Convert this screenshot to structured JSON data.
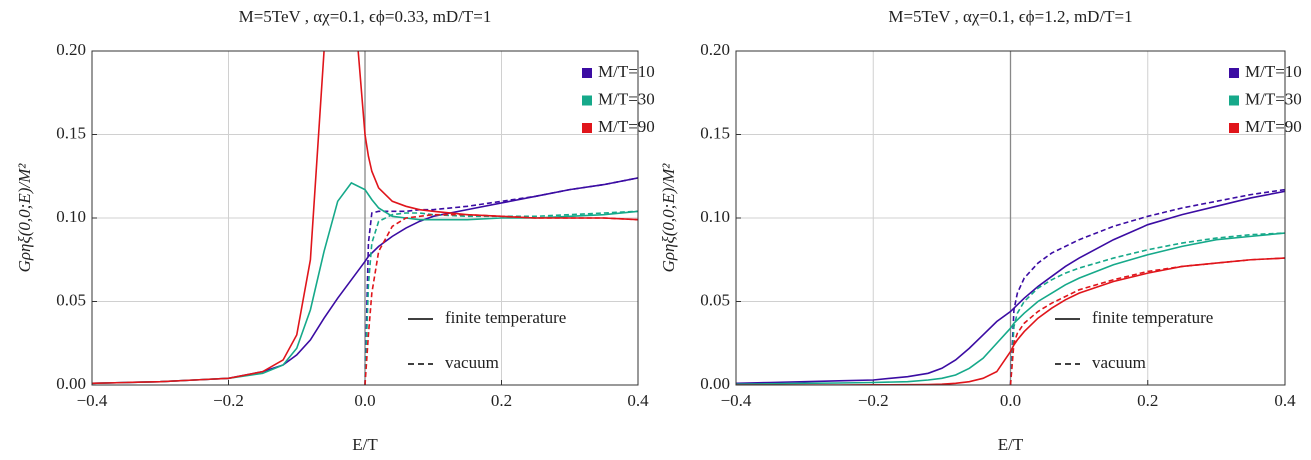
{
  "chart_data": [
    {
      "type": "line",
      "title": "M=5TeV , αχ=0.1, ϵϕ=0.33, mD/T=1",
      "xlabel": "E/T",
      "ylabel": "Gρηξ(0,0;E)/M²",
      "x": [
        -0.4,
        -0.35,
        -0.3,
        -0.25,
        -0.2,
        -0.15,
        -0.12,
        -0.1,
        -0.08,
        -0.06,
        -0.04,
        -0.02,
        0,
        0.005,
        0.01,
        0.02,
        0.04,
        0.06,
        0.08,
        0.1,
        0.15,
        0.2,
        0.25,
        0.3,
        0.35,
        0.4
      ],
      "series": [
        {
          "name": "M/T=10",
          "color": "#3b0ca3",
          "values": [
            0.001,
            0.0015,
            0.002,
            0.003,
            0.004,
            0.008,
            0.012,
            0.018,
            0.027,
            0.04,
            0.052,
            0.063,
            0.074,
            0.077,
            0.079,
            0.083,
            0.089,
            0.094,
            0.098,
            0.101,
            0.105,
            0.109,
            0.113,
            0.117,
            0.12,
            0.124
          ],
          "vacuum_values": [
            null,
            null,
            null,
            null,
            null,
            null,
            null,
            null,
            null,
            null,
            null,
            null,
            0,
            0.085,
            0.103,
            0.104,
            0.104,
            0.104,
            0.105,
            0.105,
            0.107,
            0.11,
            0.113,
            0.117,
            0.12,
            0.124
          ]
        },
        {
          "name": "M/T=30",
          "color": "#16a98a",
          "values": [
            0.001,
            0.0015,
            0.002,
            0.003,
            0.004,
            0.007,
            0.012,
            0.022,
            0.045,
            0.08,
            0.11,
            0.121,
            0.117,
            0.114,
            0.111,
            0.106,
            0.101,
            0.1,
            0.099,
            0.099,
            0.099,
            0.1,
            0.1,
            0.101,
            0.102,
            0.104
          ],
          "vacuum_values": [
            null,
            null,
            null,
            null,
            null,
            null,
            null,
            null,
            null,
            null,
            null,
            null,
            0,
            0.06,
            0.085,
            0.098,
            0.102,
            0.103,
            0.103,
            0.102,
            0.101,
            0.101,
            0.101,
            0.102,
            0.103,
            0.104
          ]
        },
        {
          "name": "M/T=90",
          "color": "#e0151b",
          "values": [
            0.001,
            0.0015,
            0.002,
            0.003,
            0.004,
            0.008,
            0.015,
            0.03,
            0.075,
            0.2,
            0.3,
            0.25,
            0.15,
            0.137,
            0.128,
            0.118,
            0.11,
            0.107,
            0.105,
            0.104,
            0.102,
            0.101,
            0.1,
            0.1,
            0.1,
            0.099
          ],
          "vacuum_values": [
            null,
            null,
            null,
            null,
            null,
            null,
            null,
            null,
            null,
            null,
            null,
            null,
            0,
            0.03,
            0.055,
            0.08,
            0.095,
            0.1,
            0.101,
            0.102,
            0.102,
            0.101,
            0.1,
            0.1,
            0.1,
            0.099
          ]
        }
      ],
      "style_legend": [
        "finite temperature",
        "vacuum"
      ],
      "xlim": [
        -0.4,
        0.4
      ],
      "ylim": [
        0,
        0.2
      ],
      "xticks": [
        {
          "value": -0.4,
          "label": "−0.4"
        },
        {
          "value": -0.2,
          "label": "−0.2"
        },
        {
          "value": 0,
          "label": "0.0"
        },
        0.2,
        0.4
      ],
      "yticks": [
        {
          "value": 0,
          "label": "0.00"
        },
        0.05,
        {
          "value": 0.1,
          "label": "0.10"
        },
        0.15,
        {
          "value": 0.2,
          "label": "0.20"
        }
      ],
      "grid": true
    },
    {
      "type": "line",
      "title": "M=5TeV , αχ=0.1, ϵϕ=1.2, mD/T=1",
      "xlabel": "E/T",
      "ylabel": "Gρηξ(0,0;E)/M²",
      "x": [
        -0.4,
        -0.35,
        -0.3,
        -0.25,
        -0.2,
        -0.15,
        -0.12,
        -0.1,
        -0.08,
        -0.06,
        -0.04,
        -0.02,
        0,
        0.005,
        0.01,
        0.02,
        0.04,
        0.06,
        0.08,
        0.1,
        0.15,
        0.2,
        0.25,
        0.3,
        0.35,
        0.4
      ],
      "series": [
        {
          "name": "M/T=10",
          "color": "#3b0ca3",
          "values": [
            0.001,
            0.0015,
            0.002,
            0.0025,
            0.003,
            0.005,
            0.007,
            0.01,
            0.015,
            0.022,
            0.03,
            0.038,
            0.044,
            0.046,
            0.048,
            0.052,
            0.059,
            0.065,
            0.071,
            0.076,
            0.087,
            0.096,
            0.102,
            0.107,
            0.112,
            0.116
          ],
          "vacuum_values": [
            null,
            null,
            null,
            null,
            null,
            null,
            null,
            null,
            null,
            null,
            null,
            null,
            0,
            0.045,
            0.055,
            0.064,
            0.073,
            0.079,
            0.083,
            0.087,
            0.095,
            0.101,
            0.106,
            0.11,
            0.114,
            0.117
          ]
        },
        {
          "name": "M/T=30",
          "color": "#16a98a",
          "values": [
            0.0005,
            0.0007,
            0.001,
            0.0012,
            0.0015,
            0.002,
            0.003,
            0.004,
            0.006,
            0.01,
            0.016,
            0.025,
            0.034,
            0.037,
            0.039,
            0.043,
            0.05,
            0.055,
            0.06,
            0.064,
            0.072,
            0.078,
            0.083,
            0.087,
            0.089,
            0.091
          ],
          "vacuum_values": [
            null,
            null,
            null,
            null,
            null,
            null,
            null,
            null,
            null,
            null,
            null,
            null,
            0,
            0.035,
            0.043,
            0.05,
            0.058,
            0.063,
            0.067,
            0.07,
            0.076,
            0.081,
            0.085,
            0.088,
            0.09,
            0.091
          ]
        },
        {
          "name": "M/T=90",
          "color": "#e0151b",
          "values": [
            0,
            0,
            0,
            0,
            0.0001,
            0.0002,
            0.0003,
            0.0005,
            0.001,
            0.002,
            0.004,
            0.008,
            0.02,
            0.024,
            0.027,
            0.032,
            0.04,
            0.046,
            0.051,
            0.055,
            0.062,
            0.067,
            0.071,
            0.073,
            0.075,
            0.076
          ],
          "vacuum_values": [
            null,
            null,
            null,
            null,
            null,
            null,
            null,
            null,
            null,
            null,
            null,
            null,
            0,
            0.025,
            0.031,
            0.037,
            0.044,
            0.049,
            0.053,
            0.057,
            0.063,
            0.068,
            0.071,
            0.073,
            0.075,
            0.076
          ]
        }
      ],
      "style_legend": [
        "finite temperature",
        "vacuum"
      ],
      "xlim": [
        -0.4,
        0.4
      ],
      "ylim": [
        0,
        0.2
      ],
      "xticks": [
        {
          "value": -0.4,
          "label": "−0.4"
        },
        {
          "value": -0.2,
          "label": "−0.2"
        },
        {
          "value": 0,
          "label": "0.0"
        },
        0.2,
        0.4
      ],
      "yticks": [
        {
          "value": 0,
          "label": "0.00"
        },
        0.05,
        {
          "value": 0.1,
          "label": "0.10"
        },
        0.15,
        {
          "value": 0.2,
          "label": "0.20"
        }
      ],
      "grid": true
    }
  ]
}
